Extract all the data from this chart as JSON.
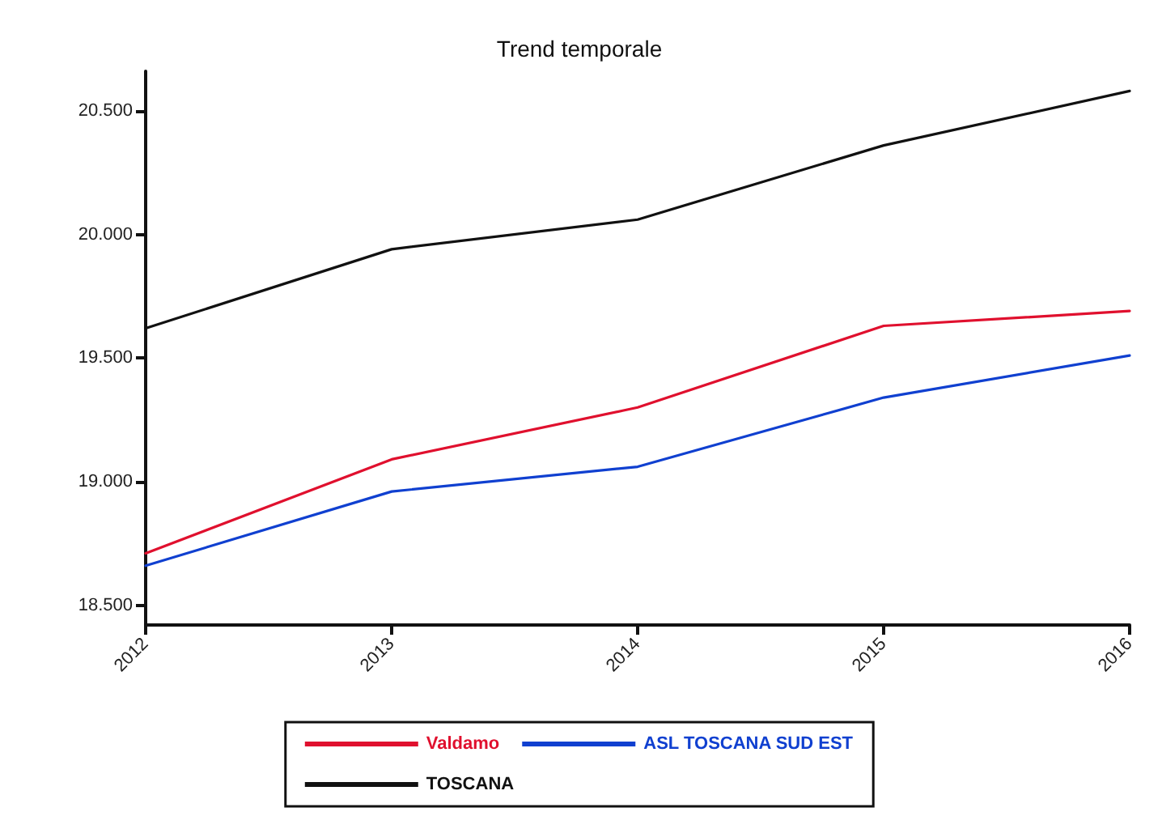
{
  "chart_data": {
    "type": "line",
    "title": "Trend temporale",
    "categories": [
      "2012",
      "2013",
      "2014",
      "2015",
      "2016"
    ],
    "series": [
      {
        "name": "Valdamo",
        "color": "#e0102e",
        "values": [
          18710,
          19090,
          19300,
          19630,
          19690
        ]
      },
      {
        "name": "ASL TOSCANA SUD EST",
        "color": "#1040d0",
        "values": [
          18660,
          18960,
          19060,
          19340,
          19510
        ]
      },
      {
        "name": "TOSCANA",
        "color": "#111111",
        "values": [
          19620,
          19940,
          20060,
          20360,
          20580
        ]
      }
    ],
    "ylim": [
      18420,
      20660
    ],
    "yticks": [
      {
        "value": 18500,
        "label": "18.500"
      },
      {
        "value": 19000,
        "label": "19.000"
      },
      {
        "value": 19500,
        "label": "19.500"
      },
      {
        "value": 20000,
        "label": "20.000"
      },
      {
        "value": 20500,
        "label": "20.500"
      }
    ],
    "grid": false,
    "legend": "bottom",
    "marker": "none",
    "line_style": "solid"
  }
}
